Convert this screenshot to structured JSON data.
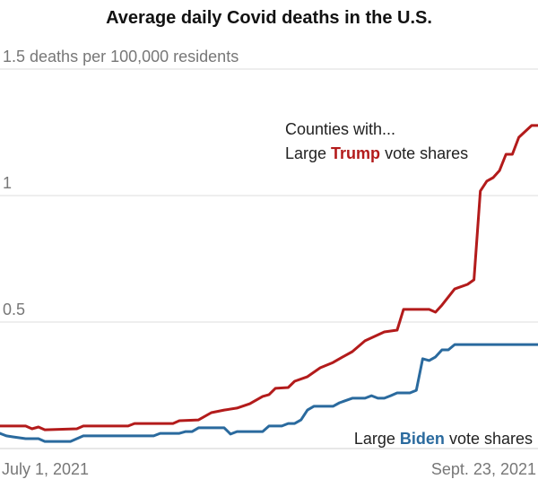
{
  "chart_data": {
    "type": "line",
    "title": "Average daily Covid deaths in the U.S.",
    "ylabel": "deaths per 100,000 residents",
    "ylim": [
      0,
      1.5
    ],
    "xlim": [
      "2021-07-01",
      "2021-09-23"
    ],
    "grid": true,
    "y_ticks": [
      {
        "value": 1.5,
        "label": "1.5 deaths per 100,000 residents"
      },
      {
        "value": 1,
        "label": "1"
      },
      {
        "value": 0.5,
        "label": "0.5"
      },
      {
        "value": 0,
        "label": ""
      }
    ],
    "x_ticks": [
      {
        "value": "2021-07-01",
        "label": "July 1, 2021"
      },
      {
        "value": "2021-09-23",
        "label": "Sept. 23, 2021"
      }
    ],
    "annotations": {
      "intro": "Counties with...",
      "trump_prefix": "Large ",
      "trump_bold": "Trump",
      "trump_suffix": " vote shares",
      "biden_prefix": "Large ",
      "biden_bold": "Biden",
      "biden_suffix": " vote shares"
    },
    "series": [
      {
        "name": "Large Trump vote shares",
        "color": "#b31b1b",
        "points": [
          [
            "2021-07-01",
            0.089
          ],
          [
            "2021-07-05",
            0.089
          ],
          [
            "2021-07-06",
            0.078
          ],
          [
            "2021-07-07",
            0.085
          ],
          [
            "2021-07-08",
            0.074
          ],
          [
            "2021-07-13",
            0.078
          ],
          [
            "2021-07-14",
            0.089
          ],
          [
            "2021-07-21",
            0.089
          ],
          [
            "2021-07-22",
            0.099
          ],
          [
            "2021-07-28",
            0.099
          ],
          [
            "2021-07-29",
            0.11
          ],
          [
            "2021-08-01",
            0.113
          ],
          [
            "2021-08-03",
            0.142
          ],
          [
            "2021-08-05",
            0.152
          ],
          [
            "2021-08-07",
            0.16
          ],
          [
            "2021-08-09",
            0.177
          ],
          [
            "2021-08-11",
            0.206
          ],
          [
            "2021-08-12",
            0.213
          ],
          [
            "2021-08-13",
            0.238
          ],
          [
            "2021-08-15",
            0.241
          ],
          [
            "2021-08-16",
            0.266
          ],
          [
            "2021-08-18",
            0.284
          ],
          [
            "2021-08-20",
            0.319
          ],
          [
            "2021-08-22",
            0.34
          ],
          [
            "2021-08-23",
            0.355
          ],
          [
            "2021-08-25",
            0.383
          ],
          [
            "2021-08-27",
            0.426
          ],
          [
            "2021-08-30",
            0.461
          ],
          [
            "2021-09-01",
            0.468
          ],
          [
            "2021-09-02",
            0.55
          ],
          [
            "2021-09-06",
            0.55
          ],
          [
            "2021-09-07",
            0.539
          ],
          [
            "2021-09-08",
            0.567
          ],
          [
            "2021-09-10",
            0.631
          ],
          [
            "2021-09-12",
            0.649
          ],
          [
            "2021-09-13",
            0.667
          ],
          [
            "2021-09-14",
            1.018
          ],
          [
            "2021-09-15",
            1.057
          ],
          [
            "2021-09-16",
            1.071
          ],
          [
            "2021-09-17",
            1.099
          ],
          [
            "2021-09-18",
            1.163
          ],
          [
            "2021-09-19",
            1.163
          ],
          [
            "2021-09-20",
            1.23
          ],
          [
            "2021-09-22",
            1.277
          ],
          [
            "2021-09-23",
            1.277
          ]
        ]
      },
      {
        "name": "Large Biden vote shares",
        "color": "#2a6a9e",
        "points": [
          [
            "2021-07-01",
            0.06
          ],
          [
            "2021-07-02",
            0.05
          ],
          [
            "2021-07-03",
            0.046
          ],
          [
            "2021-07-05",
            0.039
          ],
          [
            "2021-07-07",
            0.039
          ],
          [
            "2021-07-08",
            0.028
          ],
          [
            "2021-07-12",
            0.028
          ],
          [
            "2021-07-14",
            0.05
          ],
          [
            "2021-07-25",
            0.05
          ],
          [
            "2021-07-26",
            0.06
          ],
          [
            "2021-07-29",
            0.06
          ],
          [
            "2021-07-30",
            0.067
          ],
          [
            "2021-07-31",
            0.067
          ],
          [
            "2021-08-01",
            0.082
          ],
          [
            "2021-08-05",
            0.082
          ],
          [
            "2021-08-06",
            0.057
          ],
          [
            "2021-08-07",
            0.067
          ],
          [
            "2021-08-11",
            0.067
          ],
          [
            "2021-08-12",
            0.089
          ],
          [
            "2021-08-14",
            0.089
          ],
          [
            "2021-08-15",
            0.099
          ],
          [
            "2021-08-16",
            0.099
          ],
          [
            "2021-08-17",
            0.113
          ],
          [
            "2021-08-18",
            0.152
          ],
          [
            "2021-08-19",
            0.167
          ],
          [
            "2021-08-22",
            0.167
          ],
          [
            "2021-08-23",
            0.181
          ],
          [
            "2021-08-25",
            0.199
          ],
          [
            "2021-08-27",
            0.199
          ],
          [
            "2021-08-28",
            0.209
          ],
          [
            "2021-08-29",
            0.199
          ],
          [
            "2021-08-30",
            0.199
          ],
          [
            "2021-08-31",
            0.209
          ],
          [
            "2021-09-01",
            0.22
          ],
          [
            "2021-09-03",
            0.22
          ],
          [
            "2021-09-04",
            0.23
          ],
          [
            "2021-09-05",
            0.355
          ],
          [
            "2021-09-06",
            0.348
          ],
          [
            "2021-09-07",
            0.362
          ],
          [
            "2021-09-08",
            0.39
          ],
          [
            "2021-09-09",
            0.39
          ],
          [
            "2021-09-10",
            0.411
          ],
          [
            "2021-09-23",
            0.411
          ]
        ]
      }
    ]
  }
}
